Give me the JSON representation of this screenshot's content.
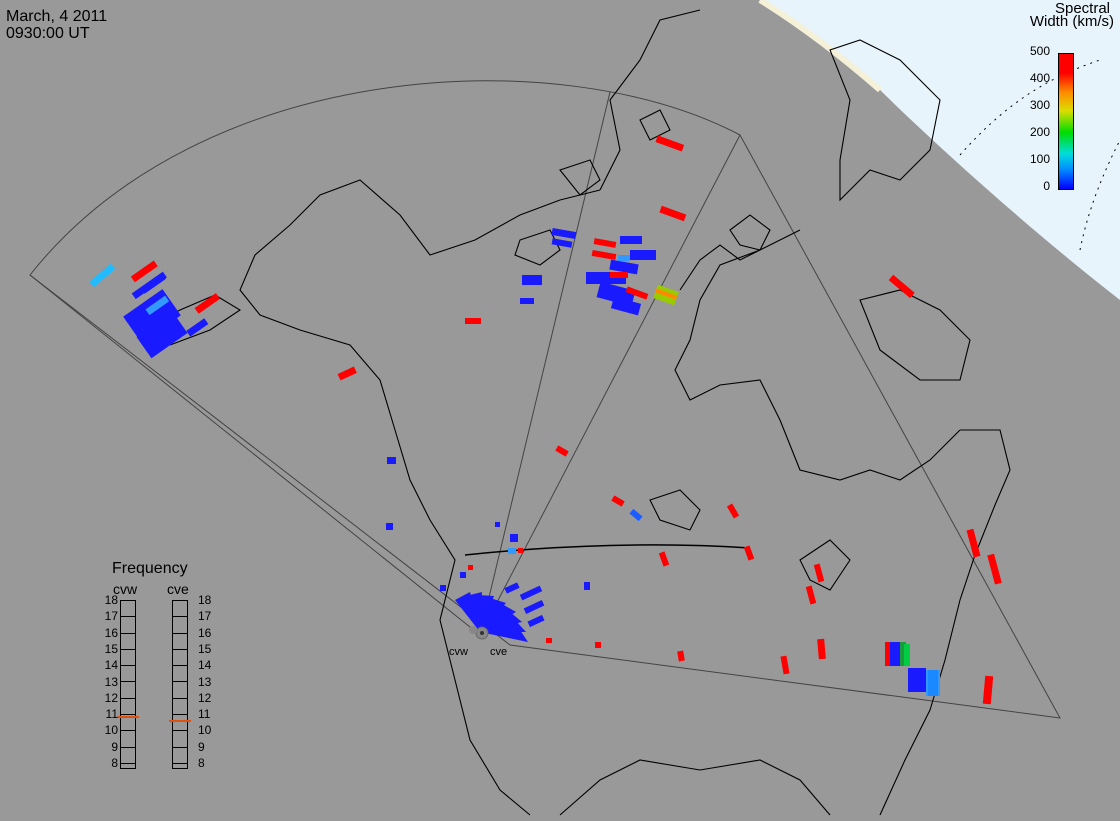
{
  "header": {
    "date": "March, 4 2011",
    "time": "0930:00 UT"
  },
  "legend": {
    "title_line1": "Spectral",
    "title_line2": "Width (km/s)",
    "ticks": [
      "500",
      "400",
      "300",
      "200",
      "100",
      "0"
    ],
    "range": [
      0,
      500
    ]
  },
  "frequency_panel": {
    "title": "Frequency",
    "radars": [
      "cvw",
      "cve"
    ],
    "scale": [
      "18",
      "17",
      "16",
      "15",
      "14",
      "13",
      "12",
      "11",
      "10",
      "9",
      "8"
    ],
    "cvw_freq_mhz": 10.8,
    "cve_freq_mhz": 10.6,
    "marker_color": "#e05010"
  },
  "stations": {
    "west": "cvw",
    "east": "cve"
  },
  "colors": {
    "background": "#999999",
    "coast": "#000000",
    "daylight": "#e8f4fb",
    "low_width": "#0000ff",
    "high_width": "#ff0000"
  }
}
